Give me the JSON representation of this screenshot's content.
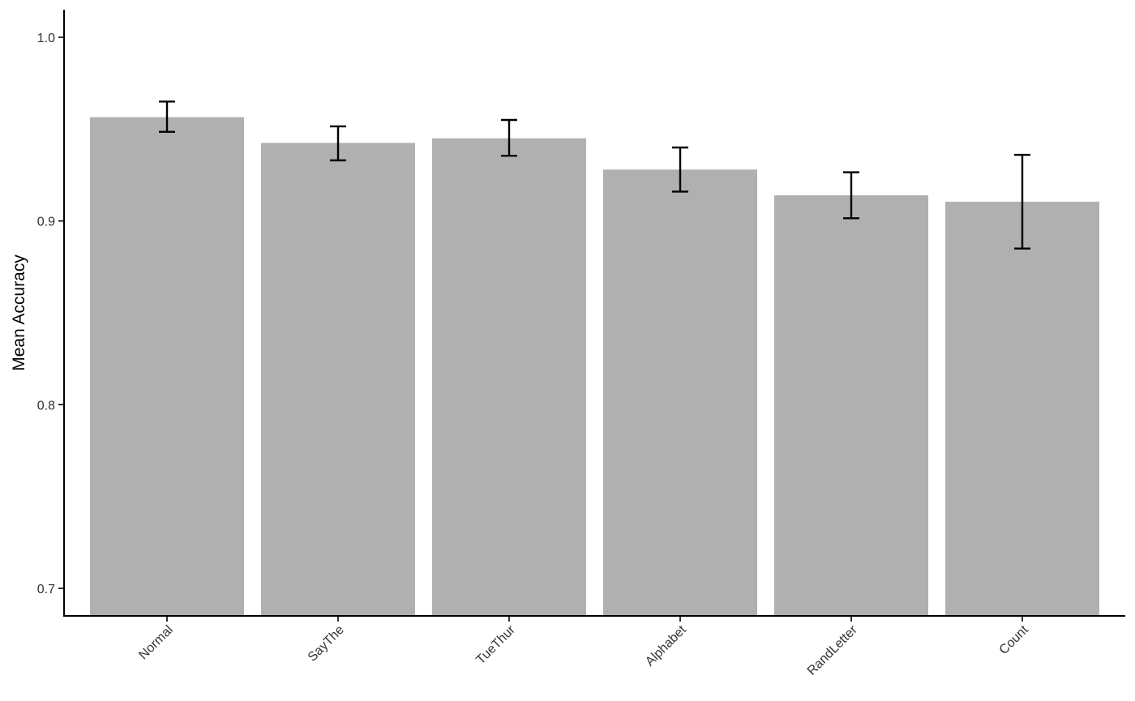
{
  "chart_data": {
    "type": "bar",
    "title": "",
    "xlabel": "",
    "ylabel": "Mean Accuracy",
    "categories": [
      "Normal",
      "SayThe",
      "TueThur",
      "Alphabet",
      "RandLetter",
      "Count"
    ],
    "values": [
      0.9565,
      0.9425,
      0.945,
      0.928,
      0.914,
      0.9105
    ],
    "error_low": [
      0.9485,
      0.933,
      0.9355,
      0.916,
      0.9015,
      0.885
    ],
    "error_high": [
      0.965,
      0.9515,
      0.955,
      0.94,
      0.9265,
      0.936
    ],
    "yticks": [
      "0.7",
      "0.8",
      "0.9",
      "1.0"
    ],
    "ylim": [
      0.685,
      1.015
    ],
    "grid": false,
    "legend": "none",
    "colors": {
      "bar": "#b0b0b0",
      "error_bar": "#000000",
      "axis": "#000000"
    }
  }
}
